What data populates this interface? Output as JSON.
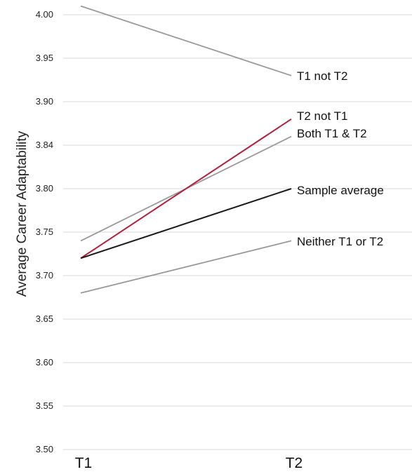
{
  "chart_data": {
    "type": "line",
    "title": "",
    "xlabel": "",
    "ylabel": "Average Career Adaptability",
    "categories": [
      "T1",
      "T2"
    ],
    "y_ticks": [
      "3.50",
      "3.55",
      "3.60",
      "3.65",
      "3.70",
      "3.75",
      "3.80",
      "3.84",
      "3.90",
      "3.95",
      "4.00"
    ],
    "ylim": [
      3.5,
      4.0
    ],
    "grid": true,
    "legend": "labels at line ends",
    "series": [
      {
        "name": "T1 not T2",
        "values": [
          4.01,
          3.93
        ],
        "color": "#999999"
      },
      {
        "name": "T2 not T1",
        "values": [
          3.72,
          3.88
        ],
        "color": "#b3203a"
      },
      {
        "name": "Both T1 & T2",
        "values": [
          3.74,
          3.86
        ],
        "color": "#999999"
      },
      {
        "name": "Sample average",
        "values": [
          3.72,
          3.8
        ],
        "color": "#1a1a1a"
      },
      {
        "name": "Neither T1 or T2",
        "values": [
          3.68,
          3.74
        ],
        "color": "#999999"
      }
    ]
  }
}
